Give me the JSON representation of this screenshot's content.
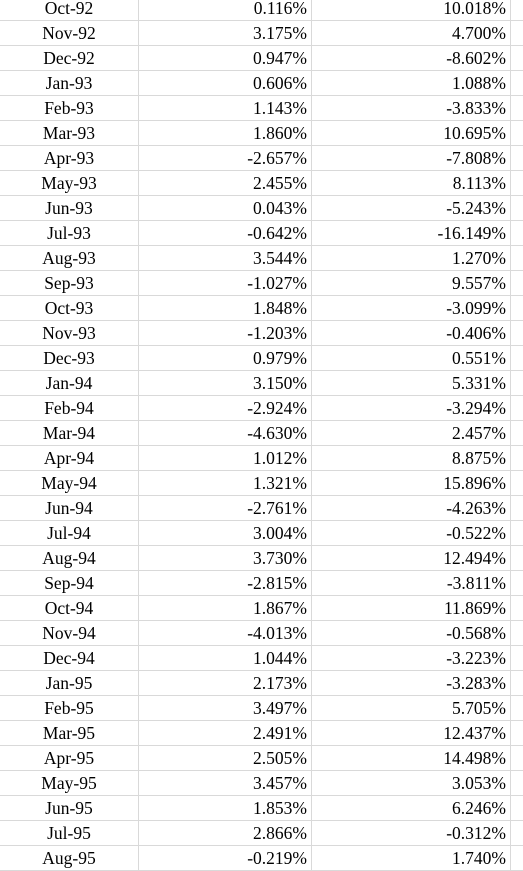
{
  "rows": [
    {
      "date": "Oct-92",
      "a": "0.116%",
      "b": "10.018%"
    },
    {
      "date": "Nov-92",
      "a": "3.175%",
      "b": "4.700%"
    },
    {
      "date": "Dec-92",
      "a": "0.947%",
      "b": "-8.602%"
    },
    {
      "date": "Jan-93",
      "a": "0.606%",
      "b": "1.088%"
    },
    {
      "date": "Feb-93",
      "a": "1.143%",
      "b": "-3.833%"
    },
    {
      "date": "Mar-93",
      "a": "1.860%",
      "b": "10.695%"
    },
    {
      "date": "Apr-93",
      "a": "-2.657%",
      "b": "-7.808%"
    },
    {
      "date": "May-93",
      "a": "2.455%",
      "b": "8.113%"
    },
    {
      "date": "Jun-93",
      "a": "0.043%",
      "b": "-5.243%"
    },
    {
      "date": "Jul-93",
      "a": "-0.642%",
      "b": "-16.149%"
    },
    {
      "date": "Aug-93",
      "a": "3.544%",
      "b": "1.270%"
    },
    {
      "date": "Sep-93",
      "a": "-1.027%",
      "b": "9.557%"
    },
    {
      "date": "Oct-93",
      "a": "1.848%",
      "b": "-3.099%"
    },
    {
      "date": "Nov-93",
      "a": "-1.203%",
      "b": "-0.406%"
    },
    {
      "date": "Dec-93",
      "a": "0.979%",
      "b": "0.551%"
    },
    {
      "date": "Jan-94",
      "a": "3.150%",
      "b": "5.331%"
    },
    {
      "date": "Feb-94",
      "a": "-2.924%",
      "b": "-3.294%"
    },
    {
      "date": "Mar-94",
      "a": "-4.630%",
      "b": "2.457%"
    },
    {
      "date": "Apr-94",
      "a": "1.012%",
      "b": "8.875%"
    },
    {
      "date": "May-94",
      "a": "1.321%",
      "b": "15.896%"
    },
    {
      "date": "Jun-94",
      "a": "-2.761%",
      "b": "-4.263%"
    },
    {
      "date": "Jul-94",
      "a": "3.004%",
      "b": "-0.522%"
    },
    {
      "date": "Aug-94",
      "a": "3.730%",
      "b": "12.494%"
    },
    {
      "date": "Sep-94",
      "a": "-2.815%",
      "b": "-3.811%"
    },
    {
      "date": "Oct-94",
      "a": "1.867%",
      "b": "11.869%"
    },
    {
      "date": "Nov-94",
      "a": "-4.013%",
      "b": "-0.568%"
    },
    {
      "date": "Dec-94",
      "a": "1.044%",
      "b": "-3.223%"
    },
    {
      "date": "Jan-95",
      "a": "2.173%",
      "b": "-3.283%"
    },
    {
      "date": "Feb-95",
      "a": "3.497%",
      "b": "5.705%"
    },
    {
      "date": "Mar-95",
      "a": "2.491%",
      "b": "12.437%"
    },
    {
      "date": "Apr-95",
      "a": "2.505%",
      "b": "14.498%"
    },
    {
      "date": "May-95",
      "a": "3.457%",
      "b": "3.053%"
    },
    {
      "date": "Jun-95",
      "a": "1.853%",
      "b": "6.246%"
    },
    {
      "date": "Jul-95",
      "a": "2.866%",
      "b": "-0.312%"
    },
    {
      "date": "Aug-95",
      "a": "-0.219%",
      "b": "1.740%"
    }
  ]
}
